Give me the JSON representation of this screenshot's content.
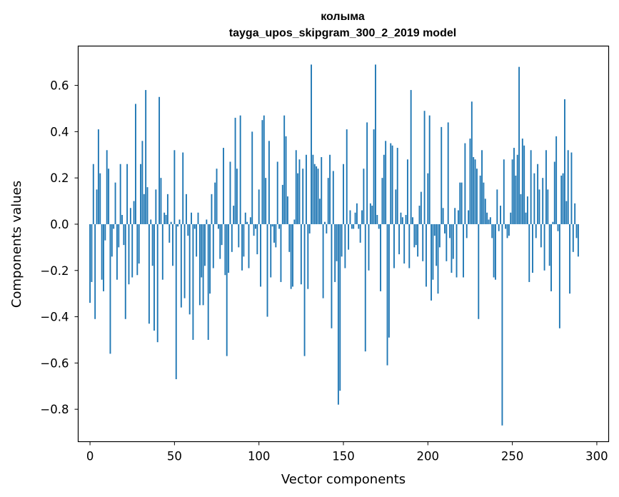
{
  "chart_data": {
    "type": "bar",
    "title": "колыма",
    "subtitle": "tayga_upos_skipgram_300_2_2019 model",
    "xlabel": "Vector components",
    "ylabel": "Components values",
    "xlim": [
      -7,
      307
    ],
    "ylim": [
      -0.94,
      0.77
    ],
    "xticks": [
      0,
      50,
      100,
      150,
      200,
      250,
      300
    ],
    "xtick_labels": [
      "0",
      "50",
      "100",
      "150",
      "200",
      "250",
      "300"
    ],
    "yticks": [
      -0.8,
      -0.6,
      -0.4,
      -0.2,
      0.0,
      0.2,
      0.4,
      0.6
    ],
    "ytick_labels": [
      "−0.8",
      "−0.6",
      "−0.4",
      "−0.2",
      "0.0",
      "0.2",
      "0.4",
      "0.6"
    ],
    "grid": false,
    "bar_color": "#1f77b4",
    "series": [
      {
        "name": "колыма",
        "values": [
          -0.34,
          -0.25,
          0.26,
          -0.41,
          0.15,
          0.41,
          0.22,
          -0.24,
          -0.29,
          -0.07,
          0.32,
          0.24,
          -0.56,
          -0.14,
          -0.02,
          0.18,
          -0.24,
          -0.1,
          0.26,
          0.04,
          -0.09,
          -0.41,
          0.26,
          -0.26,
          0.07,
          -0.23,
          0.1,
          0.52,
          -0.22,
          -0.17,
          0.26,
          0.36,
          0.13,
          0.58,
          0.16,
          -0.43,
          0.02,
          -0.18,
          -0.46,
          0.15,
          -0.51,
          0.55,
          0.2,
          -0.24,
          0.05,
          0.04,
          0.13,
          -0.08,
          0.01,
          -0.18,
          0.32,
          -0.67,
          -0.01,
          0.02,
          -0.36,
          0.31,
          -0.32,
          0.13,
          -0.05,
          -0.39,
          0.05,
          -0.5,
          -0.02,
          -0.14,
          0.05,
          -0.35,
          -0.23,
          -0.35,
          -0.18,
          0.02,
          -0.5,
          -0.3,
          0.13,
          -0.19,
          0.18,
          0.24,
          -0.02,
          -0.15,
          -0.09,
          0.33,
          -0.22,
          -0.57,
          -0.21,
          0.27,
          -0.12,
          0.08,
          0.46,
          0.24,
          -0.1,
          0.47,
          -0.2,
          -0.14,
          0.05,
          0.01,
          -0.19,
          0.03,
          0.4,
          -0.05,
          -0.02,
          -0.13,
          0.15,
          -0.27,
          0.45,
          0.47,
          0.2,
          -0.4,
          0.36,
          -0.23,
          -0.01,
          -0.08,
          -0.1,
          0.27,
          -0.02,
          -0.25,
          0.17,
          0.47,
          0.38,
          0.12,
          -0.12,
          -0.28,
          -0.27,
          0.02,
          0.32,
          0.22,
          0.28,
          -0.26,
          0.24,
          -0.57,
          0.3,
          -0.28,
          -0.04,
          0.69,
          0.3,
          0.26,
          0.25,
          0.24,
          0.11,
          0.29,
          -0.32,
          0.01,
          -0.04,
          0.2,
          0.3,
          -0.45,
          0.23,
          -0.25,
          -0.16,
          -0.78,
          -0.72,
          -0.14,
          0.26,
          -0.19,
          0.41,
          -0.11,
          0.06,
          -0.02,
          -0.02,
          0.05,
          0.09,
          -0.02,
          -0.08,
          0.06,
          0.24,
          -0.55,
          0.44,
          -0.2,
          0.09,
          0.08,
          0.41,
          0.69,
          0.04,
          -0.02,
          -0.29,
          0.2,
          0.3,
          0.36,
          -0.61,
          -0.49,
          0.35,
          0.34,
          -0.19,
          0.15,
          0.33,
          -0.13,
          0.05,
          0.03,
          -0.17,
          0.04,
          0.28,
          -0.19,
          0.58,
          0.03,
          -0.1,
          -0.09,
          -0.14,
          0.08,
          0.14,
          -0.16,
          0.49,
          -0.27,
          0.22,
          0.47,
          -0.33,
          -0.24,
          -0.05,
          -0.18,
          -0.3,
          -0.1,
          0.42,
          0.07,
          -0.04,
          -0.16,
          0.44,
          -0.06,
          -0.21,
          -0.15,
          0.07,
          -0.23,
          0.06,
          0.18,
          0.18,
          -0.23,
          0.35,
          -0.06,
          0.06,
          0.37,
          0.53,
          0.29,
          0.28,
          0.24,
          -0.41,
          0.21,
          0.32,
          0.18,
          0.11,
          0.05,
          0.02,
          0.03,
          -0.06,
          -0.23,
          -0.24,
          0.15,
          -0.03,
          0.08,
          -0.87,
          0.28,
          -0.02,
          -0.06,
          -0.05,
          0.05,
          0.28,
          0.33,
          0.21,
          0.3,
          0.68,
          0.13,
          0.37,
          0.34,
          0.05,
          0.12,
          -0.25,
          0.32,
          -0.21,
          0.22,
          -0.06,
          0.26,
          0.15,
          -0.1,
          0.2,
          -0.2,
          0.32,
          0.15,
          -0.18,
          -0.29,
          0.01,
          0.27,
          0.38,
          -0.03,
          -0.45,
          0.21,
          0.22,
          0.54,
          0.1,
          0.32,
          -0.3,
          0.31,
          -0.12,
          0.09,
          -0.06,
          -0.14
        ]
      }
    ]
  }
}
